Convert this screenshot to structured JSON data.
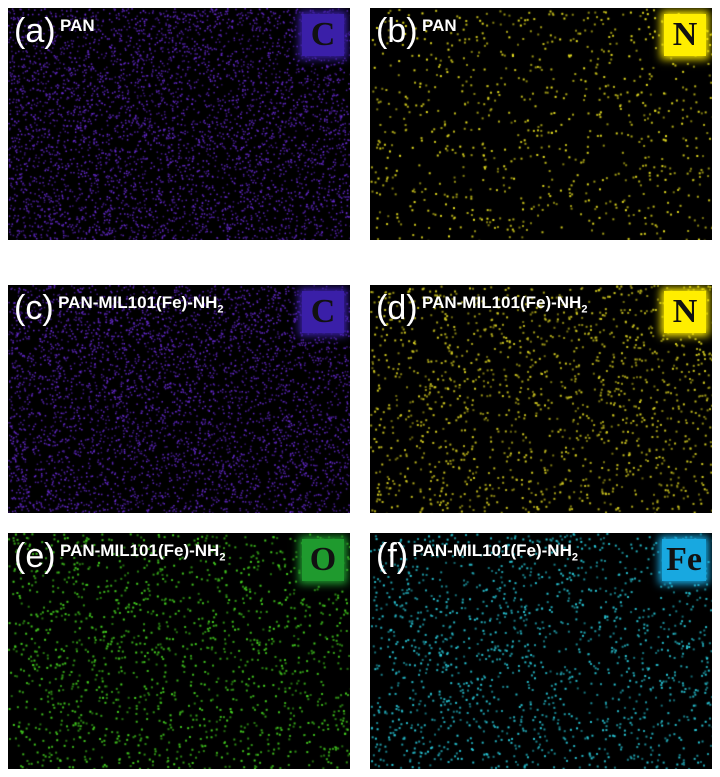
{
  "panels": [
    {
      "letter": "(a)",
      "sample": "PAN",
      "sub": "",
      "element": "C",
      "dot_color": "#6a2cd8",
      "badge_color": "#3a1fa8",
      "density": "high"
    },
    {
      "letter": "(b)",
      "sample": "PAN",
      "sub": "",
      "element": "N",
      "dot_color": "#e8e020",
      "badge_color": "#ffee00",
      "density": "low"
    },
    {
      "letter": "(c)",
      "sample": "PAN-MIL101(Fe)-NH",
      "sub": "2",
      "element": "C",
      "dot_color": "#6a2cd8",
      "badge_color": "#3a1fa8",
      "density": "high"
    },
    {
      "letter": "(d)",
      "sample": "PAN-MIL101(Fe)-NH",
      "sub": "2",
      "element": "N",
      "dot_color": "#d4cc20",
      "badge_color": "#ffee00",
      "density": "medium"
    },
    {
      "letter": "(e)",
      "sample": "PAN-MIL101(Fe)-NH",
      "sub": "2",
      "element": "O",
      "dot_color": "#44d020",
      "badge_color": "#1f9a2e",
      "density": "medium"
    },
    {
      "letter": "(f)",
      "sample": "PAN-MIL101(Fe)-NH",
      "sub": "2",
      "element": "Fe",
      "dot_color": "#28c8d8",
      "badge_color": "#18a8e0",
      "density": "medium"
    }
  ]
}
